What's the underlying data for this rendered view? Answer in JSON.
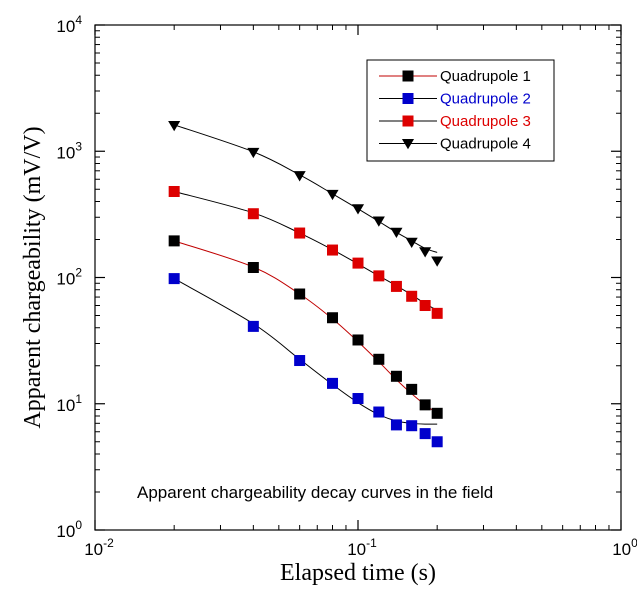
{
  "chart_data": {
    "type": "scatter",
    "xlabel": "Elapsed time (s)",
    "ylabel": "Apparent chargeability (mV/V)",
    "x_scale": "log",
    "y_scale": "log",
    "xlim": [
      0.01,
      1
    ],
    "ylim": [
      1,
      10000
    ],
    "x_ticks": [
      {
        "value": 0.01,
        "base": "10",
        "exp": "-2"
      },
      {
        "value": 0.1,
        "base": "10",
        "exp": "-1"
      },
      {
        "value": 1,
        "base": "10",
        "exp": "0"
      }
    ],
    "y_ticks": [
      {
        "value": 1,
        "base": "10",
        "exp": "0"
      },
      {
        "value": 10,
        "base": "10",
        "exp": "1"
      },
      {
        "value": 100,
        "base": "10",
        "exp": "2"
      },
      {
        "value": 1000,
        "base": "10",
        "exp": "3"
      },
      {
        "value": 10000,
        "base": "10",
        "exp": "4"
      }
    ],
    "grid": false,
    "legend_position": "top-right",
    "annotation": "Apparent chargeability decay curves in the field",
    "x": [
      0.02,
      0.04,
      0.06,
      0.08,
      0.1,
      0.12,
      0.14,
      0.16,
      0.18,
      0.2
    ],
    "series": [
      {
        "name": "Quadrupole 1",
        "color": "#000000",
        "line_color": "#c00000",
        "marker": "square",
        "values": [
          195,
          120,
          74,
          48,
          32,
          22.5,
          16.5,
          13,
          9.8,
          8.4
        ],
        "fit": [
          195,
          121,
          74,
          47,
          31,
          21.5,
          15.5,
          12,
          9.8,
          8.4
        ]
      },
      {
        "name": "Quadrupole 2",
        "color": "#0000cc",
        "line_color": "#000000",
        "marker": "square",
        "values": [
          98,
          41,
          22,
          14.5,
          11,
          8.6,
          6.8,
          6.7,
          5.8,
          5.0
        ],
        "fit": [
          98,
          43,
          22.5,
          14.2,
          10.2,
          8.2,
          7.3,
          7.0,
          6.9,
          6.9
        ]
      },
      {
        "name": "Quadrupole 3",
        "color": "#dd0000",
        "line_color": "#000000",
        "marker": "square",
        "values": [
          480,
          320,
          225,
          165,
          130,
          103,
          85,
          71,
          60,
          52
        ],
        "fit": [
          480,
          325,
          225,
          166,
          128,
          103,
          86,
          73,
          62,
          55
        ]
      },
      {
        "name": "Quadrupole 4",
        "color": "#000000",
        "line_color": "#000000",
        "marker": "triangle-down",
        "values": [
          1600,
          980,
          640,
          455,
          350,
          280,
          228,
          190,
          160,
          135
        ],
        "fit": [
          1620,
          990,
          650,
          460,
          350,
          278,
          228,
          195,
          170,
          158
        ]
      }
    ]
  }
}
